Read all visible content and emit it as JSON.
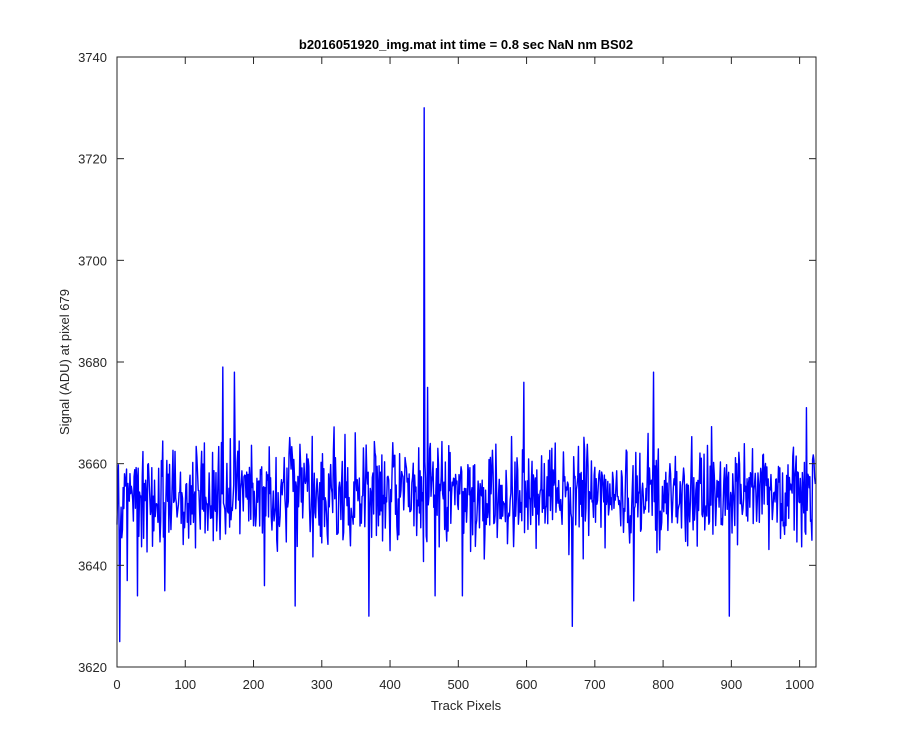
{
  "chart_data": {
    "type": "line",
    "title": "b2016051920_img.mat int time = 0.8 sec  NaN nm BS02",
    "xlabel": "Track Pixels",
    "ylabel": "Signal (ADU) at pixel 679",
    "xlim": [
      0,
      1024
    ],
    "ylim": [
      3620,
      3740
    ],
    "xticks": [
      0,
      100,
      200,
      300,
      400,
      500,
      600,
      700,
      800,
      900,
      1000
    ],
    "yticks": [
      3620,
      3640,
      3660,
      3680,
      3700,
      3720,
      3740
    ],
    "grid": false,
    "line_color": "#0000ff",
    "series": [
      {
        "baseline": 3654,
        "n_points": 1024,
        "description_points": [
          [
            0,
            3648
          ],
          [
            4,
            3625
          ],
          [
            8,
            3647
          ],
          [
            15,
            3637
          ],
          [
            30,
            3634
          ],
          [
            46,
            3660
          ],
          [
            70,
            3635
          ],
          [
            155,
            3679
          ],
          [
            172,
            3678
          ],
          [
            216,
            3636
          ],
          [
            261,
            3632
          ],
          [
            369,
            3630
          ],
          [
            450,
            3730
          ],
          [
            455,
            3675
          ],
          [
            466,
            3634
          ],
          [
            506,
            3634
          ],
          [
            596,
            3676
          ],
          [
            667,
            3628
          ],
          [
            757,
            3633
          ],
          [
            786,
            3678
          ],
          [
            897,
            3630
          ],
          [
            1010,
            3671
          ],
          [
            1023,
            3656
          ]
        ],
        "noise_amplitude": 8
      }
    ]
  }
}
